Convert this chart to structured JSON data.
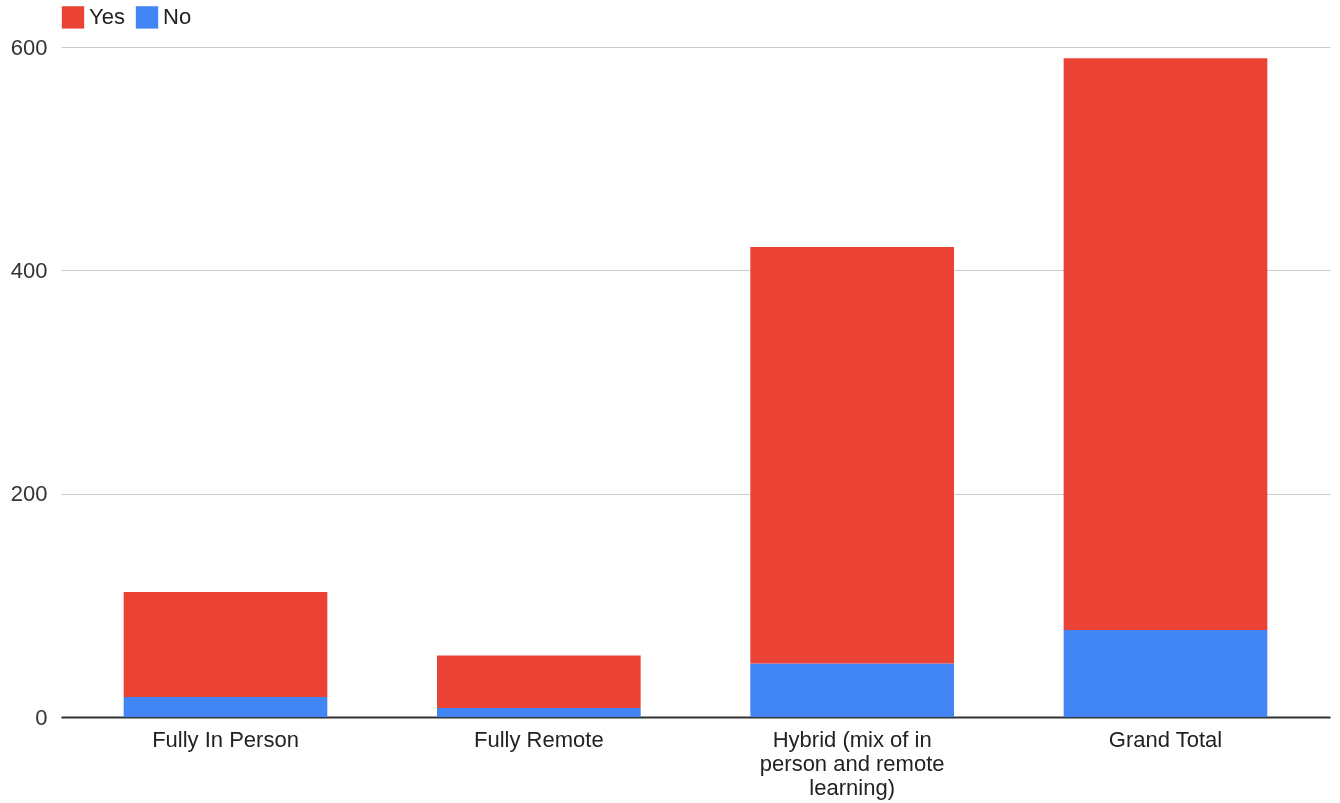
{
  "chart_data": {
    "type": "bar",
    "stacked": true,
    "categories": [
      "Fully In Person",
      "Fully Remote",
      "Hybrid (mix of in person and remote learning)",
      "Grand Total"
    ],
    "series": [
      {
        "name": "No",
        "color": "#4285f4",
        "values": [
          18,
          8,
          48,
          78
        ]
      },
      {
        "name": "Yes",
        "color": "#ea4335",
        "values": [
          94,
          47,
          373,
          512
        ]
      }
    ],
    "ylim": [
      0,
      600
    ],
    "yticks": [
      0,
      200,
      400,
      600
    ],
    "grid": "y",
    "legend": "top"
  }
}
